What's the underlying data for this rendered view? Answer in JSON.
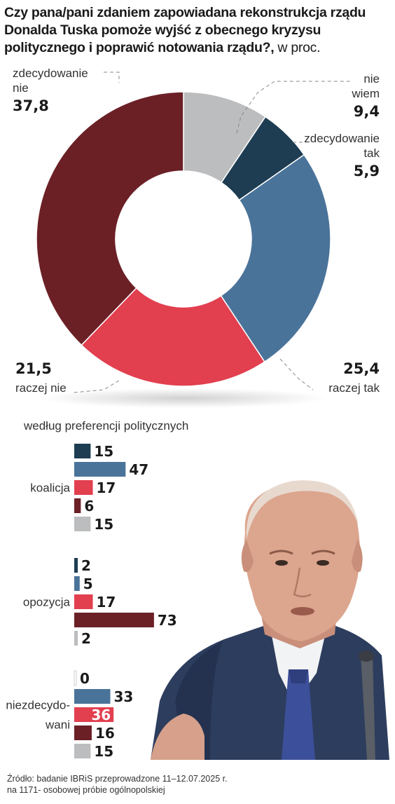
{
  "title": {
    "main": "Czy pana/pani zdaniem zapowiadana rekonstrukcja rządu Donalda Tuska pomoże wyjść z obecnego kryzysu politycznego i poprawić notowania rządu?,",
    "unit": " w proc."
  },
  "colors": {
    "zdecydowanie_tak": "#1e3d52",
    "raczej_tak": "#4a7399",
    "raczej_nie": "#e23f4f",
    "zdecydowanie_nie": "#6b2026",
    "nie_wiem": "#bcbdbf"
  },
  "chart_data": [
    {
      "type": "pie",
      "style": "donut",
      "slices": [
        {
          "key": "nie_wiem",
          "label_lines": [
            "nie",
            "wiem"
          ],
          "value": 9.4,
          "value_text": "9,4"
        },
        {
          "key": "zdecydowanie_tak",
          "label_lines": [
            "zdecydowanie",
            "tak"
          ],
          "value": 5.9,
          "value_text": "5,9"
        },
        {
          "key": "raczej_tak",
          "label_lines": [
            "raczej tak"
          ],
          "value": 25.4,
          "value_text": "25,4"
        },
        {
          "key": "raczej_nie",
          "label_lines": [
            "raczej nie"
          ],
          "value": 21.5,
          "value_text": "21,5"
        },
        {
          "key": "zdecydowanie_nie",
          "label_lines": [
            "zdecydowanie",
            "nie"
          ],
          "value": 37.8,
          "value_text": "37,8"
        }
      ]
    },
    {
      "type": "bar",
      "orientation": "horizontal",
      "title": "według preferencji politycznych",
      "series_order": [
        "zdecydowanie_tak",
        "raczej_tak",
        "raczej_nie",
        "zdecydowanie_nie",
        "nie_wiem"
      ],
      "groups": [
        {
          "name": "koalicja",
          "values": [
            15,
            47,
            17,
            6,
            15
          ]
        },
        {
          "name": "opozycja",
          "values": [
            2,
            5,
            17,
            73,
            2
          ]
        },
        {
          "name": "niezdecydo-wani",
          "label_lines": [
            "niezdecydo-",
            "wani"
          ],
          "values": [
            0,
            33,
            36,
            16,
            15
          ]
        }
      ]
    }
  ],
  "source": {
    "line1": "Źródło: badanie IBRiS przeprowadzone  11–12.07.2025 r.",
    "line2": "na 1171- osobowej próbie ogólnopolskiej"
  }
}
